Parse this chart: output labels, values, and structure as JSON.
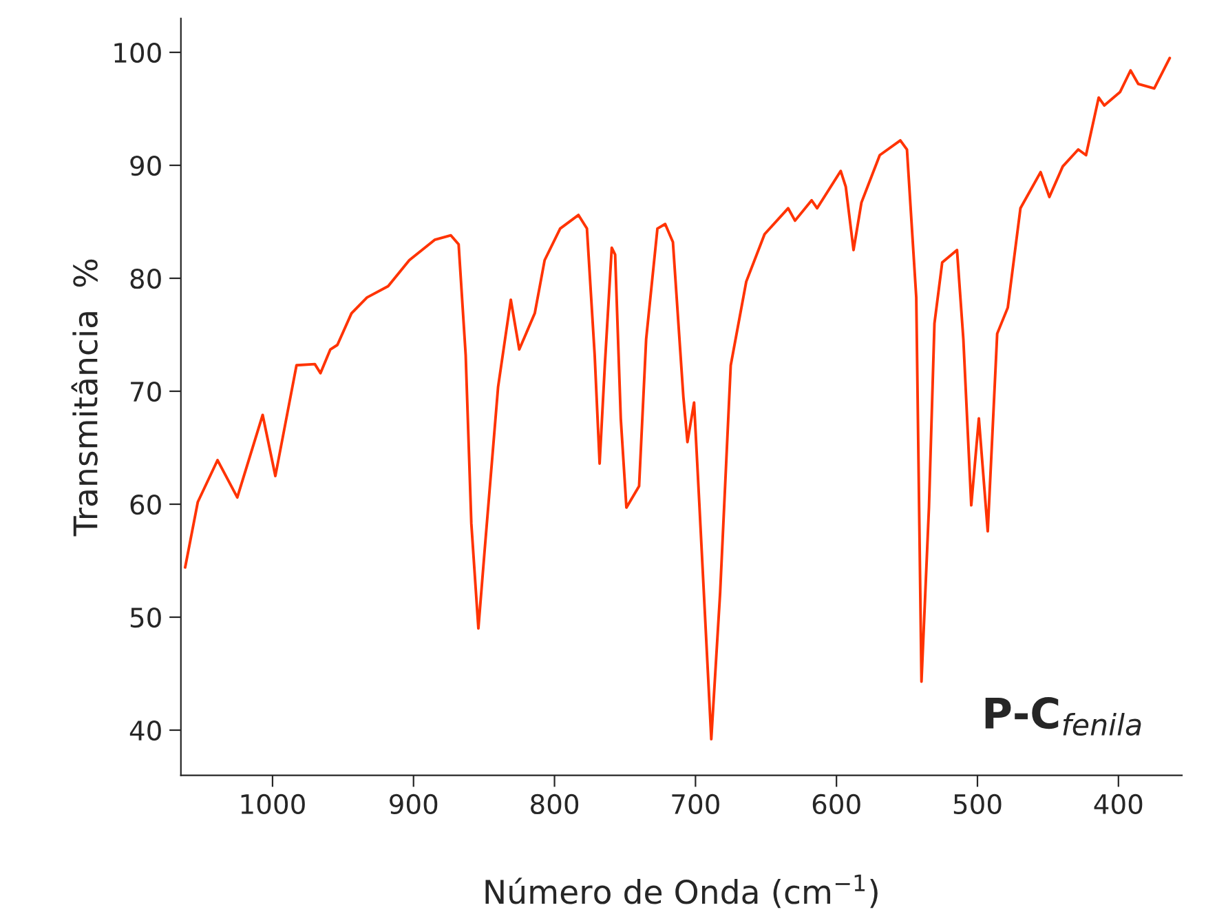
{
  "chart_data": {
    "type": "line",
    "xlabel": "Número de Onda (cm$^{−1}$)",
    "ylabel": "Transmitância  %",
    "annotations": [
      "P-C$_{fenila}$"
    ],
    "xlim": [
      1065,
      355
    ],
    "xticks": [
      1000,
      900,
      800,
      700,
      600,
      500,
      400
    ],
    "ylim": [
      36,
      103
    ],
    "yticks": [
      40,
      50,
      60,
      70,
      80,
      90,
      100
    ],
    "grid": false,
    "marker": "none",
    "line_style": "solid",
    "series": [
      {
        "color": "#ff3300",
        "x": [
          1062,
          1053,
          1039,
          1025,
          1007,
          998,
          983,
          970,
          966,
          959,
          954,
          944,
          933,
          918,
          903,
          885,
          873.5,
          868,
          863,
          859,
          854,
          849.5,
          840,
          831,
          825,
          814,
          807,
          796,
          783,
          777,
          771.5,
          768,
          764.3,
          759.4,
          757,
          753,
          749,
          740,
          735,
          727,
          721.5,
          716,
          708.6,
          705.7,
          701,
          697.3,
          688.8,
          682.5,
          675,
          664,
          651,
          634.3,
          629.4,
          617.6,
          613.7,
          597,
          593.4,
          587.9,
          582.3,
          569.3,
          554.7,
          550,
          543.4,
          539.7,
          534.4,
          530.5,
          525,
          514.5,
          510,
          504.4,
          499,
          492.7,
          486,
          478.5,
          469.5,
          455.2,
          449,
          439.5,
          428.5,
          423,
          414,
          410,
          398.8,
          391.4,
          385.9,
          374.6,
          363.6
        ],
        "values": [
          54.4,
          60.2,
          63.9,
          60.6,
          67.9,
          62.5,
          72.3,
          72.4,
          71.6,
          73.7,
          74.1,
          76.9,
          78.3,
          79.3,
          81.6,
          83.4,
          83.8,
          83.0,
          73.2,
          58.3,
          49.0,
          56.0,
          70.4,
          78.1,
          73.7,
          76.9,
          81.6,
          84.4,
          85.6,
          84.4,
          73.2,
          63.6,
          72.3,
          82.7,
          82.1,
          67.6,
          59.7,
          61.6,
          74.6,
          84.4,
          84.8,
          83.2,
          69.5,
          65.5,
          69.0,
          60.1,
          39.2,
          52.2,
          72.3,
          79.7,
          83.9,
          86.2,
          85.1,
          86.9,
          86.2,
          89.5,
          88.1,
          82.5,
          86.7,
          90.9,
          92.2,
          91.4,
          78.3,
          44.3,
          59.7,
          76.0,
          81.4,
          82.5,
          74.6,
          59.9,
          67.6,
          57.6,
          75.1,
          77.4,
          86.2,
          89.4,
          87.2,
          89.9,
          91.4,
          90.9,
          96.0,
          95.3,
          96.5,
          98.4,
          97.2,
          96.8,
          99.5
        ]
      }
    ]
  }
}
